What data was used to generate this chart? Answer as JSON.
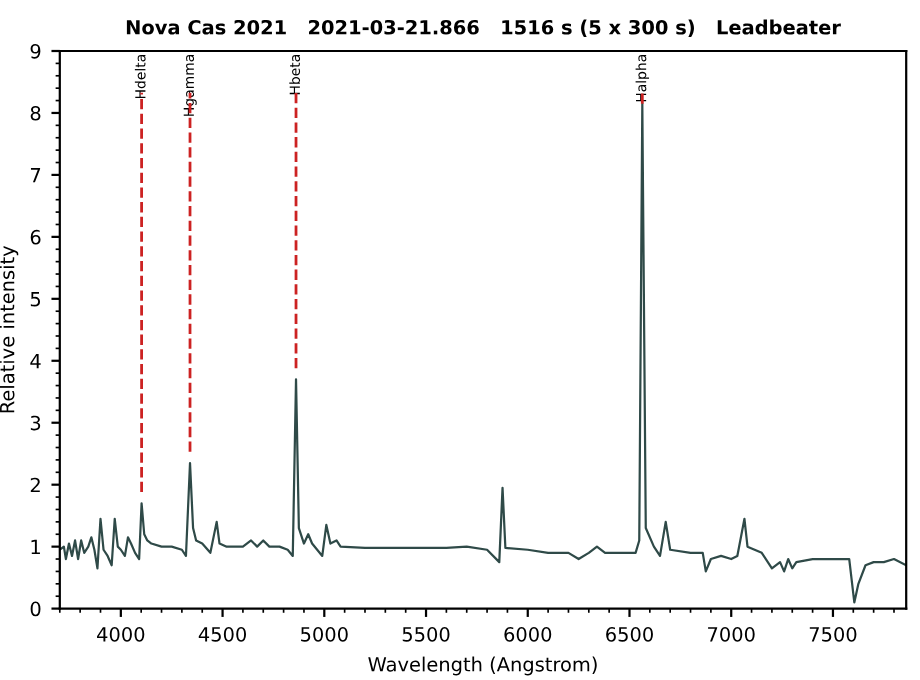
{
  "chart_data": {
    "type": "line",
    "title": "Nova Cas 2021   2021-03-21.866   1516 s (5 x 300 s)   Leadbeater",
    "xlabel": "Wavelength (Angstrom)",
    "ylabel": "Relative intensity",
    "xlim": [
      3700,
      7860
    ],
    "ylim": [
      0,
      9
    ],
    "xticks": [
      4000,
      4500,
      5000,
      5500,
      6000,
      6500,
      7000,
      7500
    ],
    "yticks": [
      0,
      1,
      2,
      3,
      4,
      5,
      6,
      7,
      8,
      9
    ],
    "grid": false,
    "legend": false,
    "marker": "none",
    "line_style": "solid",
    "series": [
      {
        "color": "#2f4a48",
        "x": [
          3700,
          3720,
          3730,
          3745,
          3760,
          3775,
          3790,
          3805,
          3820,
          3840,
          3855,
          3870,
          3885,
          3900,
          3915,
          3935,
          3955,
          3970,
          3985,
          4000,
          4020,
          4035,
          4050,
          4070,
          4090,
          4102,
          4115,
          4130,
          4150,
          4200,
          4250,
          4300,
          4320,
          4340,
          4355,
          4370,
          4400,
          4440,
          4471,
          4485,
          4520,
          4560,
          4600,
          4640,
          4670,
          4700,
          4730,
          4780,
          4820,
          4845,
          4861,
          4875,
          4900,
          4921,
          4940,
          4990,
          5010,
          5030,
          5060,
          5080,
          5200,
          5400,
          5600,
          5700,
          5800,
          5860,
          5876,
          5890,
          6000,
          6100,
          6200,
          6250,
          6300,
          6340,
          6380,
          6450,
          6500,
          6530,
          6548,
          6563,
          6580,
          6620,
          6650,
          6678,
          6700,
          6800,
          6860,
          6875,
          6900,
          6950,
          7000,
          7030,
          7065,
          7080,
          7150,
          7200,
          7240,
          7260,
          7280,
          7300,
          7320,
          7400,
          7500,
          7580,
          7605,
          7625,
          7660,
          7700,
          7750,
          7800,
          7860
        ],
        "values": [
          0.95,
          1.0,
          0.8,
          1.05,
          0.85,
          1.1,
          0.8,
          1.1,
          0.9,
          1.0,
          1.15,
          0.95,
          0.65,
          1.45,
          0.95,
          0.85,
          0.7,
          1.45,
          1.0,
          0.95,
          0.85,
          1.15,
          1.05,
          0.9,
          0.8,
          1.7,
          1.2,
          1.1,
          1.05,
          1.0,
          1.0,
          0.95,
          0.85,
          2.35,
          1.3,
          1.1,
          1.05,
          0.9,
          1.4,
          1.05,
          1.0,
          1.0,
          1.0,
          1.1,
          1.0,
          1.1,
          1.0,
          1.0,
          0.95,
          0.85,
          3.7,
          1.3,
          1.05,
          1.2,
          1.05,
          0.85,
          1.35,
          1.05,
          1.1,
          1.0,
          0.98,
          0.98,
          0.98,
          1.0,
          0.95,
          0.75,
          1.95,
          0.98,
          0.95,
          0.9,
          0.9,
          0.8,
          0.9,
          1.0,
          0.9,
          0.9,
          0.9,
          0.9,
          1.1,
          8.15,
          1.3,
          1.0,
          0.85,
          1.4,
          0.95,
          0.9,
          0.9,
          0.6,
          0.8,
          0.85,
          0.8,
          0.85,
          1.45,
          1.0,
          0.9,
          0.65,
          0.75,
          0.6,
          0.8,
          0.65,
          0.75,
          0.8,
          0.8,
          0.8,
          0.1,
          0.4,
          0.7,
          0.75,
          0.75,
          0.8,
          0.7
        ]
      }
    ],
    "ref_lines": [
      {
        "axis": "x",
        "value": 4102,
        "label": "Hdelta",
        "color": "#cc2222",
        "line_style": "dashed"
      },
      {
        "axis": "x",
        "value": 4340,
        "label": "Hgamma",
        "color": "#cc2222",
        "line_style": "dashed"
      },
      {
        "axis": "x",
        "value": 4861,
        "label": "Hbeta",
        "color": "#cc2222",
        "line_style": "dashed"
      },
      {
        "axis": "x",
        "value": 6563,
        "label": "Halpha",
        "color": "#cc2222",
        "line_style": "dashed"
      }
    ]
  }
}
